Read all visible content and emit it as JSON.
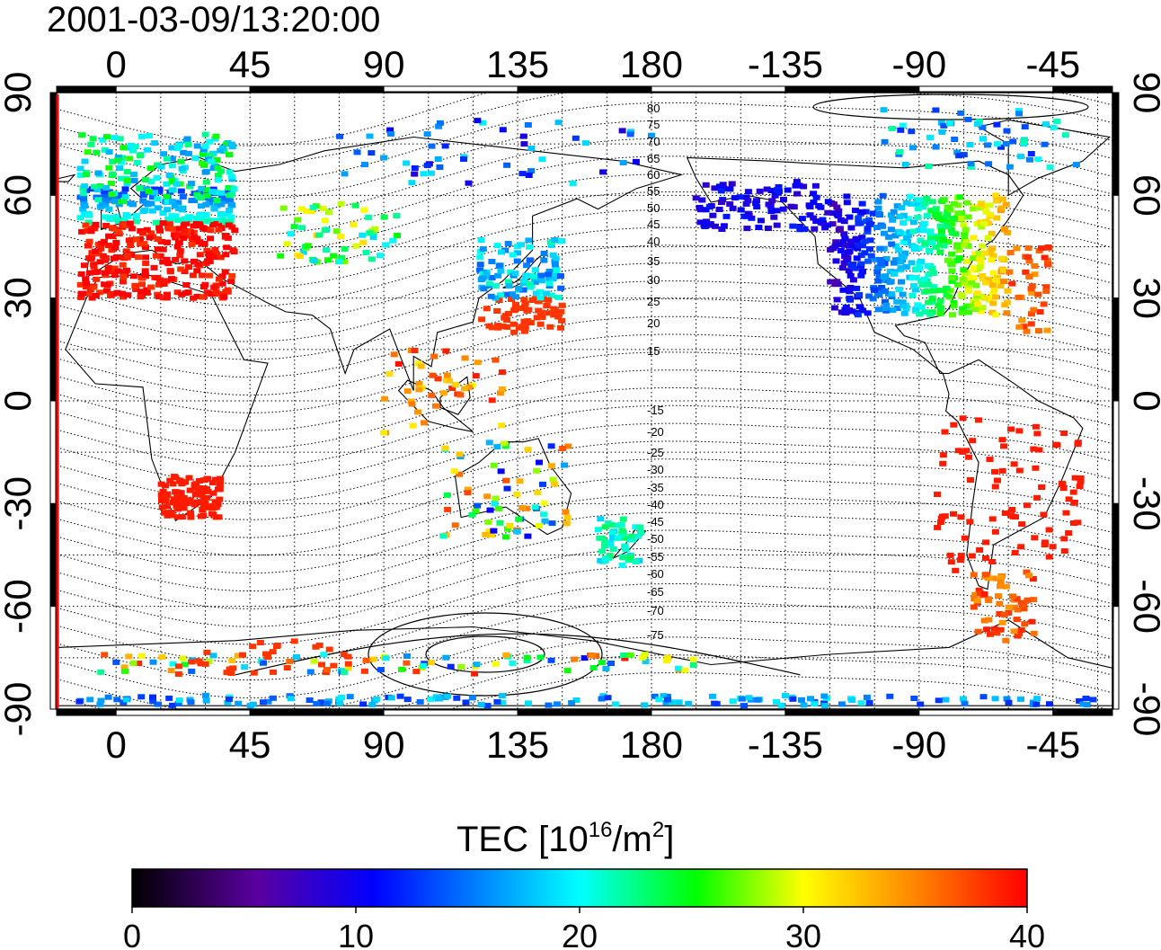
{
  "map": {
    "timestamp": "2001-03-09/13:20:00",
    "lon_ticks_top": [
      "0",
      "45",
      "90",
      "135",
      "180",
      "-135",
      "-90",
      "-45"
    ],
    "lon_ticks_bottom": [
      "0",
      "45",
      "90",
      "135",
      "180",
      "-135",
      "-90",
      "-45"
    ],
    "lat_ticks_left": [
      "90",
      "60",
      "30",
      "0",
      "-30",
      "-60",
      "-90"
    ],
    "lat_ticks_right": [
      "90",
      "60",
      "30",
      "0",
      "-30",
      "-60",
      "-90"
    ],
    "mag_contour_labels": [
      "80",
      "75",
      "70",
      "65",
      "60",
      "55",
      "50",
      "45",
      "40",
      "35",
      "30",
      "25",
      "20",
      "15",
      "-15",
      "-20",
      "-25",
      "-30",
      "-35",
      "-40",
      "-45",
      "-50",
      "-55",
      "-60",
      "-65",
      "-70",
      "-75"
    ],
    "lon_range": [
      -20,
      335
    ],
    "lat_range": [
      -90,
      90
    ]
  },
  "colorbar": {
    "title_prefix": "TEC  [10",
    "title_exp1": "16",
    "title_mid": "/m",
    "title_exp2": "2",
    "title_suffix": "]",
    "ticks": [
      "0",
      "10",
      "20",
      "30",
      "40"
    ],
    "range": [
      0,
      40
    ],
    "colors": [
      "#000000",
      "#5a00a0",
      "#0000ff",
      "#00ffff",
      "#00ff00",
      "#ffff00",
      "#ff8000",
      "#ff0000"
    ]
  }
}
